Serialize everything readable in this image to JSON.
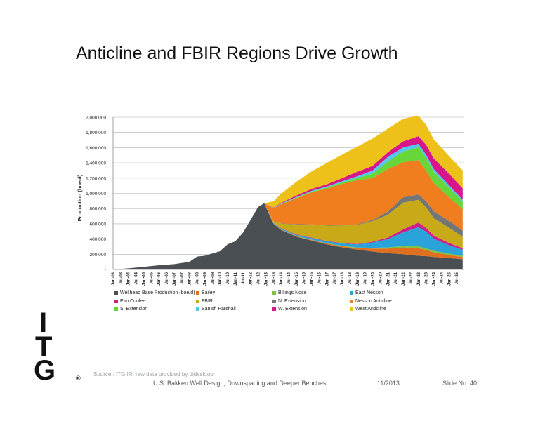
{
  "slide": {
    "title": "Anticline and FBIR Regions Drive Growth",
    "source_note": "Source : ITG IR, raw data provided by didesktop",
    "footer_text": "U.S. Bakken Well Design, Downspacing and Deeper Benches",
    "footer_date": "11/2013",
    "footer_slide": "Slide No. 40"
  },
  "logo": {
    "letters": [
      "I",
      "T",
      "G"
    ],
    "mark": "®"
  },
  "chart_data": {
    "type": "area",
    "stacked": true,
    "title": "",
    "xlabel": "",
    "ylabel": "Production (boe/d)",
    "ylim": [
      0,
      2000000
    ],
    "yticks": [
      0,
      200000,
      400000,
      600000,
      800000,
      1000000,
      1200000,
      1400000,
      1600000,
      1800000,
      2000000
    ],
    "ytick_labels": [
      "-",
      "200,000",
      "400,000",
      "600,000",
      "800,000",
      "1,000,000",
      "1,200,000",
      "1,400,000",
      "1,600,000",
      "1,800,000",
      "2,000,000"
    ],
    "xlim": [
      2003.0,
      2026.0
    ],
    "x_tick_labels": [
      "Jan-03",
      "Jul-03",
      "Jan-04",
      "Jul-04",
      "Jan-05",
      "Jul-05",
      "Jan-06",
      "Jul-06",
      "Jan-07",
      "Jul-07",
      "Jan-08",
      "Jul-08",
      "Jan-09",
      "Jul-09",
      "Jan-10",
      "Jul-10",
      "Jan-11",
      "Jul-11",
      "Jan-12",
      "Jul-12",
      "Jan-13",
      "Jul-13",
      "Jan-14",
      "Jul-14",
      "Jan-15",
      "Jul-15",
      "Jan-16",
      "Jul-16",
      "Jan-17",
      "Jul-17",
      "Jan-18",
      "Jul-18",
      "Jan-19",
      "Jul-19",
      "Jan-20",
      "Jul-20",
      "Jan-21",
      "Jul-21",
      "Jan-22",
      "Jul-22",
      "Jan-23",
      "Jul-23",
      "Jan-24",
      "Jul-24",
      "Jan-25",
      "Jul-25"
    ],
    "x": [
      2003.0,
      2004.0,
      2005.0,
      2006.0,
      2007.0,
      2008.0,
      2008.5,
      2009.0,
      2010.0,
      2010.5,
      2011.0,
      2011.5,
      2012.0,
      2012.5,
      2012.9,
      2013.5,
      2014.0,
      2015.0,
      2016.0,
      2017.0,
      2018.0,
      2019.0,
      2020.0,
      2021.0,
      2022.0,
      2023.0,
      2023.5,
      2024.0,
      2025.0,
      2025.9
    ],
    "grid": true,
    "legend_position": "bottom",
    "series": [
      {
        "name": "Wellhead Base Production (boe/d)",
        "color": "#4a4f54",
        "values": [
          0,
          15000,
          35000,
          55000,
          70000,
          100000,
          170000,
          180000,
          240000,
          330000,
          370000,
          480000,
          650000,
          820000,
          870000,
          600000,
          520000,
          430000,
          380000,
          330000,
          290000,
          260000,
          235000,
          215000,
          200000,
          180000,
          175000,
          165000,
          150000,
          135000
        ]
      },
      {
        "name": "Bailey",
        "color": "#e07020",
        "values": [
          0,
          0,
          0,
          0,
          0,
          0,
          0,
          0,
          0,
          0,
          0,
          0,
          0,
          0,
          0,
          2000,
          4000,
          6000,
          8000,
          10000,
          15000,
          20000,
          40000,
          60000,
          90000,
          100000,
          80000,
          60000,
          40000,
          30000
        ]
      },
      {
        "name": "Billings Nose",
        "color": "#7dc241",
        "values": [
          0,
          0,
          0,
          0,
          0,
          0,
          0,
          0,
          0,
          0,
          0,
          0,
          0,
          0,
          0,
          1000,
          2000,
          3000,
          4000,
          5000,
          6000,
          8000,
          10000,
          14000,
          18000,
          25000,
          22000,
          20000,
          18000,
          15000
        ]
      },
      {
        "name": "East Nesson",
        "color": "#29a3d9",
        "values": [
          0,
          0,
          0,
          0,
          0,
          0,
          0,
          0,
          0,
          0,
          0,
          0,
          0,
          0,
          0,
          5000,
          10000,
          15000,
          20000,
          25000,
          30000,
          40000,
          70000,
          110000,
          180000,
          250000,
          220000,
          160000,
          110000,
          80000
        ]
      },
      {
        "name": "Elm Coulee",
        "color": "#cc1f8a",
        "values": [
          0,
          0,
          0,
          0,
          0,
          0,
          0,
          0,
          0,
          0,
          0,
          0,
          0,
          0,
          0,
          3000,
          5000,
          6000,
          6000,
          6000,
          6000,
          7000,
          10000,
          20000,
          40000,
          60000,
          50000,
          40000,
          30000,
          20000
        ]
      },
      {
        "name": "FBIR",
        "color": "#c8aa18",
        "values": [
          0,
          0,
          0,
          0,
          0,
          0,
          0,
          0,
          0,
          0,
          0,
          0,
          0,
          0,
          0,
          20000,
          60000,
          130000,
          170000,
          200000,
          230000,
          250000,
          270000,
          300000,
          350000,
          300000,
          270000,
          230000,
          200000,
          150000
        ]
      },
      {
        "name": "N. Extension",
        "color": "#737678",
        "values": [
          0,
          0,
          0,
          0,
          0,
          0,
          0,
          0,
          0,
          0,
          0,
          0,
          0,
          0,
          0,
          2000,
          4000,
          5000,
          5000,
          6000,
          7000,
          8000,
          15000,
          40000,
          70000,
          70000,
          80000,
          90000,
          90000,
          80000
        ]
      },
      {
        "name": "Nesson Anticline",
        "color": "#f07d1e",
        "values": [
          0,
          0,
          0,
          0,
          0,
          0,
          0,
          0,
          0,
          0,
          0,
          0,
          0,
          0,
          0,
          170000,
          250000,
          340000,
          420000,
          480000,
          540000,
          580000,
          550000,
          560000,
          460000,
          450000,
          400000,
          370000,
          310000,
          280000
        ]
      },
      {
        "name": "S. Extension",
        "color": "#66d63a",
        "values": [
          0,
          0,
          0,
          0,
          0,
          0,
          0,
          0,
          0,
          0,
          0,
          0,
          0,
          0,
          0,
          2000,
          5000,
          8000,
          10000,
          15000,
          20000,
          30000,
          60000,
          100000,
          140000,
          170000,
          170000,
          150000,
          130000,
          100000
        ]
      },
      {
        "name": "Sanish Parshall",
        "color": "#53c8f0",
        "values": [
          0,
          0,
          0,
          0,
          0,
          0,
          0,
          0,
          0,
          0,
          0,
          0,
          0,
          0,
          0,
          3000,
          5000,
          8000,
          10000,
          12000,
          15000,
          20000,
          40000,
          60000,
          55000,
          45000,
          40000,
          35000,
          30000,
          25000
        ]
      },
      {
        "name": "W. Extension",
        "color": "#d7168a",
        "values": [
          0,
          0,
          0,
          0,
          0,
          0,
          0,
          0,
          0,
          0,
          0,
          0,
          0,
          0,
          0,
          5000,
          10000,
          20000,
          25000,
          30000,
          40000,
          60000,
          60000,
          60000,
          80000,
          100000,
          130000,
          140000,
          150000,
          150000
        ]
      },
      {
        "name": "West Anticline",
        "color": "#eec11a",
        "values": [
          0,
          0,
          0,
          0,
          0,
          0,
          0,
          0,
          0,
          0,
          0,
          0,
          0,
          0,
          0,
          80000,
          120000,
          180000,
          230000,
          280000,
          310000,
          330000,
          360000,
          310000,
          297000,
          270000,
          263000,
          250000,
          232000,
          235000
        ]
      }
    ]
  }
}
